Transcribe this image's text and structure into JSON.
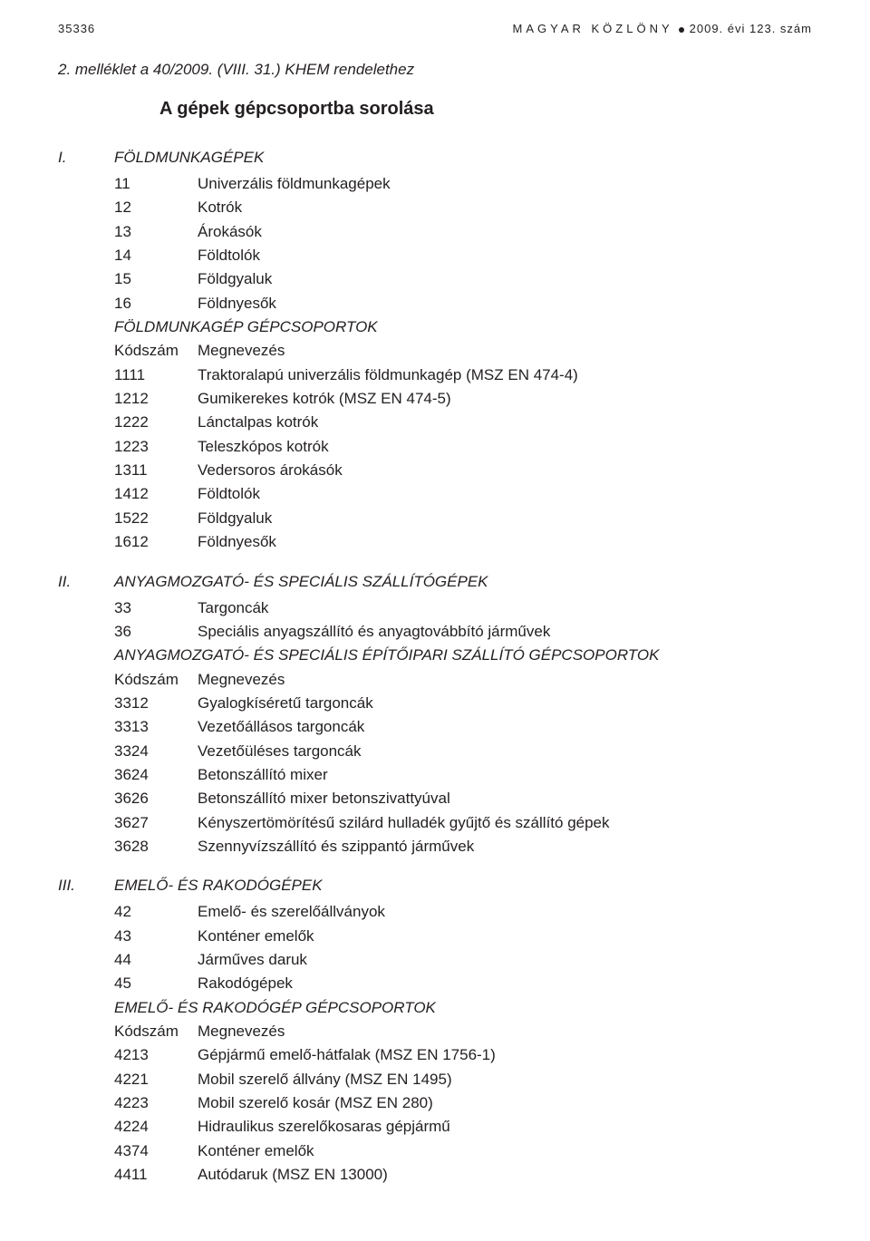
{
  "header": {
    "page_number": "35336",
    "gazette": "MAGYAR KÖZLÖNY",
    "issue": "2009. évi 123. szám"
  },
  "attachment_line": "2. melléklet a 40/2009. (VIII. 31.) KHEM rendelethez",
  "title": "A gépek gépcsoportba sorolása",
  "sections": [
    {
      "roman": "I.",
      "title": "FÖLDMUNKAGÉPEK",
      "rows1": [
        {
          "code": "11",
          "name": "Univerzális földmunkagépek"
        },
        {
          "code": "12",
          "name": "Kotrók"
        },
        {
          "code": "13",
          "name": "Árokásók"
        },
        {
          "code": "14",
          "name": "Földtolók"
        },
        {
          "code": "15",
          "name": "Földgyaluk"
        },
        {
          "code": "16",
          "name": "Földnyesők"
        }
      ],
      "subheading": "FÖLDMUNKAGÉP GÉPCSOPORTOK",
      "colhead": {
        "code": "Kódszám",
        "name": "Megnevezés"
      },
      "rows2": [
        {
          "code": "1111",
          "name": "Traktoralapú univerzális földmunkagép (MSZ EN 474-4)"
        },
        {
          "code": "1212",
          "name": "Gumikerekes kotrók (MSZ EN 474-5)"
        },
        {
          "code": "1222",
          "name": "Lánctalpas kotrók"
        },
        {
          "code": "1223",
          "name": "Teleszkópos kotrók"
        },
        {
          "code": "1311",
          "name": "Vedersoros árokásók"
        },
        {
          "code": "1412",
          "name": "Földtolók"
        },
        {
          "code": "1522",
          "name": "Földgyaluk"
        },
        {
          "code": "1612",
          "name": "Földnyesők"
        }
      ]
    },
    {
      "roman": "II.",
      "title": "ANYAGMOZGATÓ- ÉS SPECIÁLIS SZÁLLÍTÓGÉPEK",
      "rows1": [
        {
          "code": "33",
          "name": "Targoncák"
        },
        {
          "code": "36",
          "name": "Speciális anyagszállító és anyagtovábbító járművek"
        }
      ],
      "subheading": "ANYAGMOZGATÓ- ÉS SPECIÁLIS ÉPÍTŐIPARI SZÁLLÍTÓ GÉPCSOPORTOK",
      "colhead": {
        "code": "Kódszám",
        "name": "Megnevezés"
      },
      "rows2": [
        {
          "code": "3312",
          "name": "Gyalogkíséretű targoncák"
        },
        {
          "code": "3313",
          "name": "Vezetőállásos targoncák"
        },
        {
          "code": "3324",
          "name": "Vezetőüléses targoncák"
        },
        {
          "code": "3624",
          "name": "Betonszállító mixer"
        },
        {
          "code": "3626",
          "name": "Betonszállító mixer betonszivattyúval"
        },
        {
          "code": "3627",
          "name": "Kényszertömörítésű szilárd hulladék gyűjtő és szállító gépek"
        },
        {
          "code": "3628",
          "name": "Szennyvízszállító és szippantó járművek"
        }
      ]
    },
    {
      "roman": "III.",
      "title": "EMELŐ- ÉS RAKODÓGÉPEK",
      "rows1": [
        {
          "code": "42",
          "name": "Emelő- és szerelőállványok"
        },
        {
          "code": "43",
          "name": "Konténer emelők"
        },
        {
          "code": "44",
          "name": "Járműves daruk"
        },
        {
          "code": "45",
          "name": "Rakodógépek"
        }
      ],
      "subheading": "EMELŐ- ÉS RAKODÓGÉP GÉPCSOPORTOK",
      "colhead": {
        "code": "Kódszám",
        "name": "Megnevezés"
      },
      "rows2": [
        {
          "code": "4213",
          "name": "Gépjármű emelő-hátfalak (MSZ EN 1756-1)"
        },
        {
          "code": "4221",
          "name": "Mobil szerelő állvány (MSZ EN 1495)"
        },
        {
          "code": "4223",
          "name": "Mobil szerelő kosár (MSZ EN 280)"
        },
        {
          "code": "4224",
          "name": "Hidraulikus szerelőkosaras gépjármű"
        },
        {
          "code": "4374",
          "name": "Konténer emelők"
        },
        {
          "code": "4411",
          "name": "Autódaruk (MSZ EN 13000)"
        }
      ]
    }
  ]
}
